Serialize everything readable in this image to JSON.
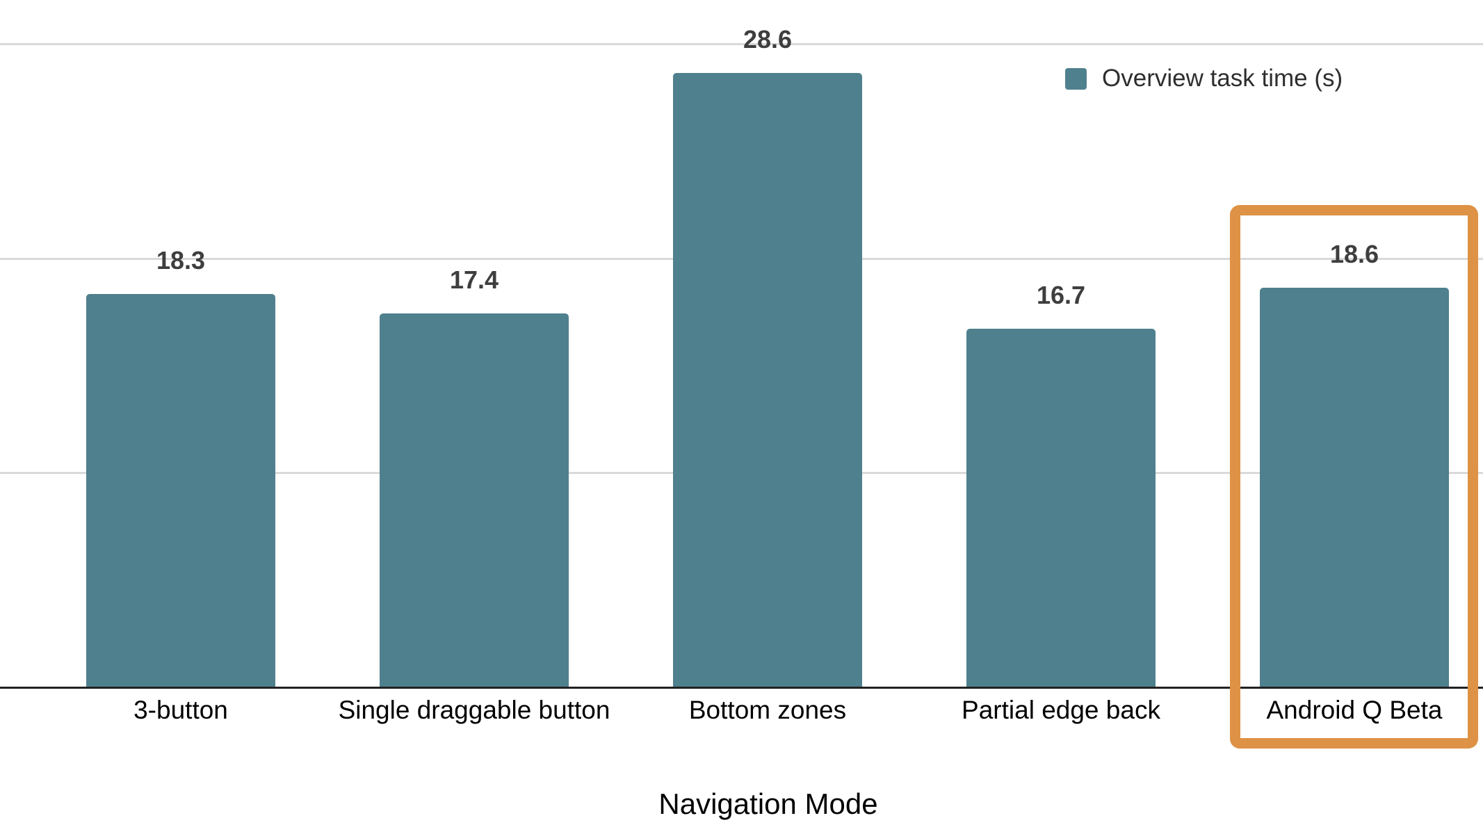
{
  "chart_data": {
    "type": "bar",
    "title": "",
    "xlabel": "Navigation Mode",
    "ylabel": "",
    "categories": [
      "3-button",
      "Single draggable button",
      "Bottom zones",
      "Partial edge back",
      "Android Q Beta"
    ],
    "series": [
      {
        "name": "Overview task time (s)",
        "values": [
          18.3,
          17.4,
          28.6,
          16.7,
          18.6
        ]
      }
    ],
    "value_labels": [
      "18.3",
      "17.4",
      "28.6",
      "16.7",
      "18.6"
    ],
    "ylim": [
      0,
      30
    ],
    "gridline_values": [
      10,
      20,
      30
    ],
    "grid": "horizontal-only, no y tick labels visible",
    "legend_position": "top-right",
    "highlight": {
      "category": "Android Q Beta",
      "value": 18.6,
      "style": "orange rounded rectangle outline around bar and its category label"
    }
  },
  "legend": {
    "label": "Overview task time (s)"
  },
  "axis": {
    "x_title": "Navigation Mode"
  },
  "colors": {
    "bar": "#4f808d",
    "highlight_box": "#de9245",
    "gridline": "#d9d9d9",
    "axis_line": "#212121",
    "value_label": "#3e3e3e",
    "category_label": "#000000",
    "background": "#ffffff"
  }
}
